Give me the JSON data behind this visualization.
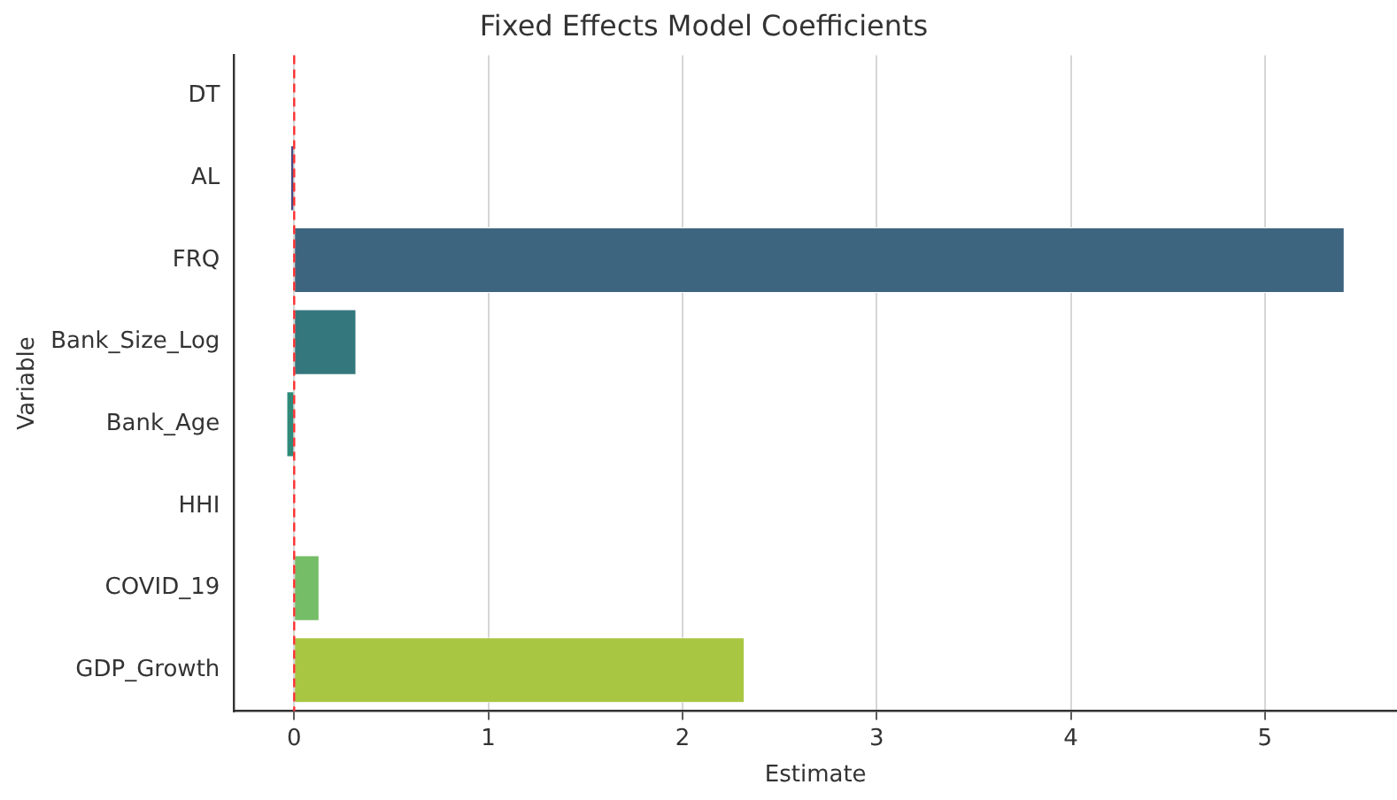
{
  "chart_data": {
    "type": "bar",
    "orientation": "horizontal",
    "title": "Fixed Effects Model Coefficients",
    "xlabel": "Estimate",
    "ylabel": "Variable",
    "categories": [
      "DT",
      "AL",
      "FRQ",
      "Bank_Size_Log",
      "Bank_Age",
      "HHI",
      "COVID_19",
      "GDP_Growth"
    ],
    "values": [
      0.0,
      -0.02,
      5.41,
      0.32,
      -0.04,
      0.0,
      0.13,
      2.32
    ],
    "colors": [
      "#4a2a6e",
      "#4a4a80",
      "#3e6580",
      "#34777d",
      "#2f8a7a",
      "#3fa176",
      "#76bd68",
      "#a8c642"
    ],
    "xlim": [
      -0.31,
      5.68
    ],
    "xticks": [
      0,
      1,
      2,
      3,
      4,
      5
    ],
    "grid": "x",
    "ref_lines": [
      {
        "axis": "x",
        "value": 0,
        "color": "#ff3030",
        "line_style": "dashed"
      }
    ]
  }
}
